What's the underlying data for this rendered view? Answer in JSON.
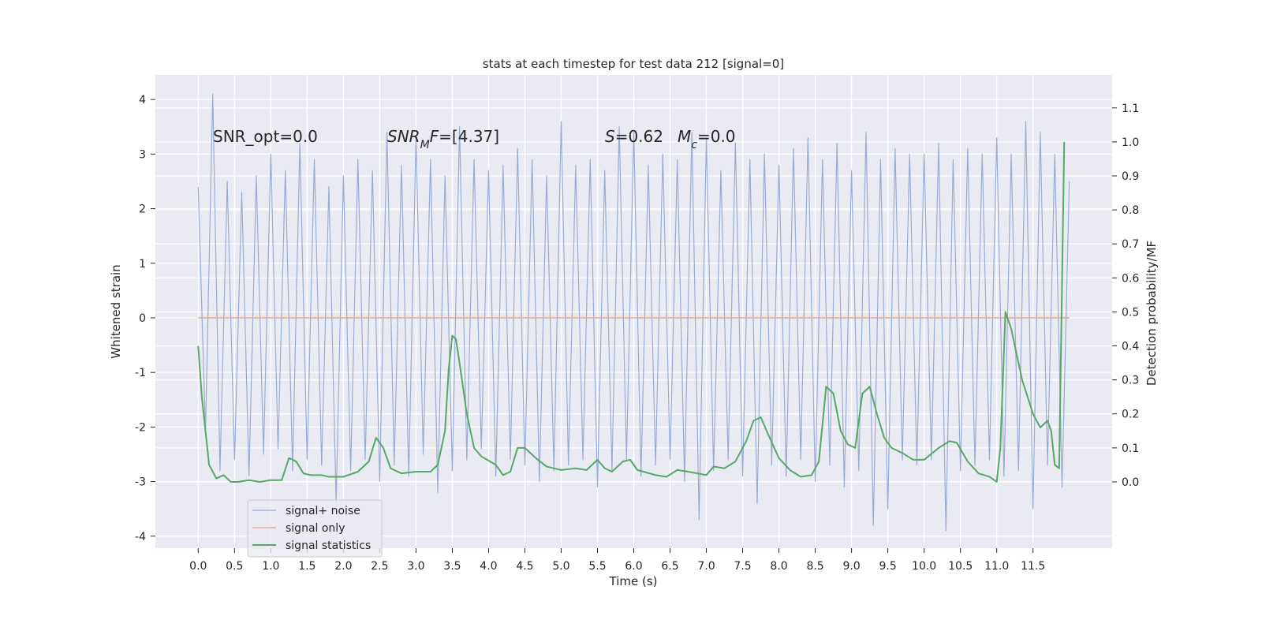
{
  "chart_data": {
    "type": "line",
    "title": "stats at each timestep for test data 212 [signal=0]",
    "xlabel": "Time (s)",
    "ylabel": "Whitened strain",
    "y2label": "Detection probability/MF",
    "xlim": [
      -0.59,
      12.59
    ],
    "ylim": [
      -4.22,
      4.45
    ],
    "y2lim": [
      -0.195,
      1.197
    ],
    "xticks": [
      {
        "value": 0,
        "label": "0.0"
      },
      0.5,
      {
        "value": 1,
        "label": "1.0"
      },
      1.5,
      {
        "value": 2,
        "label": "2.0"
      },
      2.5,
      {
        "value": 3,
        "label": "3.0"
      },
      3.5,
      {
        "value": 4,
        "label": "4.0"
      },
      4.5,
      {
        "value": 5,
        "label": "5.0"
      },
      5.5,
      {
        "value": 6,
        "label": "6.0"
      },
      6.5,
      {
        "value": 7,
        "label": "7.0"
      },
      7.5,
      {
        "value": 8,
        "label": "8.0"
      },
      8.5,
      {
        "value": 9,
        "label": "9.0"
      },
      9.5,
      {
        "value": 10,
        "label": "10.0"
      },
      10.5,
      {
        "value": 11,
        "label": "11.0"
      },
      11.5
    ],
    "yticks": [
      -4,
      -3,
      -2,
      -1,
      0,
      1,
      2,
      3,
      4
    ],
    "y2ticks": [
      {
        "value": 0,
        "label": "0.0"
      },
      0.1,
      0.2,
      0.3,
      0.4,
      0.5,
      0.6,
      0.7,
      0.8,
      0.9,
      {
        "value": 1,
        "label": "1.0"
      },
      1.1
    ],
    "grid": true,
    "legend": "lower left",
    "annotations": [
      [
        {
          "text": "SNR_opt=0.0"
        }
      ],
      [
        {
          "text": "SNR",
          "italic": true
        },
        {
          "text": "M",
          "italic": true,
          "sub": true
        },
        {
          "text": "F",
          "italic": true
        },
        {
          "text": "=[4.37]"
        }
      ],
      [
        {
          "text": "S",
          "italic": true
        },
        {
          "text": "=0.62"
        }
      ],
      [
        {
          "text": "M",
          "italic": true
        },
        {
          "text": "c",
          "italic": true,
          "sub": true
        },
        {
          "text": "=0.0"
        }
      ]
    ],
    "series": [
      {
        "name": "signal+ noise",
        "color": "#9aabd0",
        "width": 1.2,
        "x": [
          0,
          0.1,
          0.2,
          0.3,
          0.4,
          0.5,
          0.6,
          0.7,
          0.8,
          0.9,
          1,
          1.1,
          1.2,
          1.3,
          1.4,
          1.5,
          1.6,
          1.7,
          1.8,
          1.9,
          2,
          2.1,
          2.2,
          2.3,
          2.4,
          2.5,
          2.6,
          2.7,
          2.8,
          2.9,
          3,
          3.1,
          3.2,
          3.3,
          3.4,
          3.5,
          3.6,
          3.7,
          3.8,
          3.9,
          4,
          4.1,
          4.2,
          4.3,
          4.4,
          4.5,
          4.6,
          4.7,
          4.8,
          4.9,
          5,
          5.1,
          5.2,
          5.3,
          5.4,
          5.5,
          5.6,
          5.7,
          5.8,
          5.9,
          6,
          6.1,
          6.2,
          6.3,
          6.4,
          6.5,
          6.6,
          6.7,
          6.8,
          6.9,
          7,
          7.1,
          7.2,
          7.3,
          7.4,
          7.5,
          7.6,
          7.7,
          7.8,
          7.9,
          8,
          8.1,
          8.2,
          8.3,
          8.4,
          8.5,
          8.6,
          8.7,
          8.8,
          8.9,
          9,
          9.1,
          9.2,
          9.3,
          9.4,
          9.5,
          9.6,
          9.7,
          9.8,
          9.9,
          10,
          10.1,
          10.2,
          10.3,
          10.4,
          10.5,
          10.6,
          10.7,
          10.8,
          10.9,
          11,
          11.1,
          11.2,
          11.3,
          11.4,
          11.5,
          11.6,
          11.7,
          11.8,
          11.9,
          12
        ],
        "values": [
          2.4,
          -2.1,
          4.1,
          -2.8,
          2.5,
          -2.6,
          2.3,
          -2.9,
          2.6,
          -2.5,
          3.0,
          -2.4,
          2.7,
          -2.8,
          3.2,
          -2.6,
          2.9,
          -2.7,
          2.4,
          -3.4,
          2.6,
          -2.8,
          2.9,
          -2.6,
          2.7,
          -3.0,
          3.4,
          -2.7,
          2.8,
          -2.9,
          3.3,
          -2.5,
          2.9,
          -3.2,
          2.6,
          -2.8,
          3.5,
          -2.6,
          2.9,
          -2.4,
          2.7,
          -2.9,
          2.8,
          -2.6,
          3.1,
          -2.7,
          2.9,
          -3.0,
          2.6,
          -2.8,
          3.6,
          -2.7,
          2.8,
          -2.6,
          2.9,
          -3.1,
          2.7,
          -2.8,
          3.5,
          -2.6,
          3.4,
          -2.9,
          2.8,
          -2.7,
          3.0,
          -2.6,
          2.9,
          -3.0,
          3.4,
          -3.7,
          3.3,
          -2.8,
          2.7,
          -2.6,
          3.2,
          -2.9,
          2.9,
          -3.4,
          3.0,
          -2.7,
          2.8,
          -2.9,
          3.1,
          -2.6,
          3.3,
          -3.0,
          2.9,
          -2.7,
          3.2,
          -3.1,
          2.7,
          -2.8,
          3.4,
          -3.8,
          2.9,
          -3.5,
          3.1,
          -2.6,
          3.0,
          -2.7,
          3.0,
          -2.6,
          3.2,
          -3.9,
          2.9,
          -2.8,
          3.1,
          -2.7,
          3.0,
          -2.6,
          3.3,
          -2.9,
          3.0,
          -2.8,
          3.6,
          -3.5,
          3.4,
          -2.7,
          3.0,
          -3.1,
          2.5
        ]
      },
      {
        "name": "signal only",
        "color": "#e6a98c",
        "width": 1.5,
        "x": [
          0,
          12
        ],
        "values": [
          0,
          0
        ]
      },
      {
        "name": "signal statistics",
        "color": "#55a868",
        "width": 2,
        "axis": "y2",
        "x": [
          0,
          0.05,
          0.1,
          0.15,
          0.25,
          0.35,
          0.45,
          0.55,
          0.7,
          0.85,
          1.0,
          1.15,
          1.25,
          1.35,
          1.45,
          1.55,
          1.7,
          1.8,
          2.0,
          2.2,
          2.35,
          2.45,
          2.55,
          2.65,
          2.8,
          3.0,
          3.2,
          3.3,
          3.4,
          3.45,
          3.5,
          3.55,
          3.6,
          3.7,
          3.8,
          3.9,
          4.1,
          4.2,
          4.3,
          4.4,
          4.5,
          4.65,
          4.8,
          5.0,
          5.2,
          5.35,
          5.5,
          5.6,
          5.7,
          5.85,
          5.95,
          6.05,
          6.3,
          6.45,
          6.6,
          6.75,
          7.0,
          7.1,
          7.25,
          7.4,
          7.55,
          7.65,
          7.75,
          7.85,
          8.0,
          8.15,
          8.3,
          8.45,
          8.55,
          8.65,
          8.75,
          8.85,
          8.95,
          9.05,
          9.15,
          9.25,
          9.35,
          9.45,
          9.55,
          9.7,
          9.85,
          10.0,
          10.2,
          10.35,
          10.45,
          10.6,
          10.75,
          10.9,
          11.0,
          11.05,
          11.12,
          11.2,
          11.35,
          11.5,
          11.6,
          11.7,
          11.75,
          11.8,
          11.86,
          11.93
        ],
        "values": [
          0.4,
          0.25,
          0.15,
          0.05,
          0.01,
          0.02,
          0.0,
          0.0,
          0.005,
          0.0,
          0.005,
          0.005,
          0.07,
          0.06,
          0.025,
          0.02,
          0.02,
          0.015,
          0.015,
          0.03,
          0.06,
          0.13,
          0.1,
          0.04,
          0.025,
          0.03,
          0.03,
          0.05,
          0.15,
          0.33,
          0.43,
          0.42,
          0.35,
          0.2,
          0.1,
          0.075,
          0.05,
          0.02,
          0.03,
          0.1,
          0.1,
          0.07,
          0.045,
          0.035,
          0.04,
          0.035,
          0.065,
          0.04,
          0.03,
          0.06,
          0.065,
          0.035,
          0.02,
          0.015,
          0.035,
          0.03,
          0.02,
          0.045,
          0.04,
          0.06,
          0.12,
          0.18,
          0.19,
          0.14,
          0.07,
          0.035,
          0.015,
          0.02,
          0.06,
          0.28,
          0.26,
          0.15,
          0.11,
          0.1,
          0.26,
          0.28,
          0.2,
          0.13,
          0.1,
          0.085,
          0.065,
          0.065,
          0.1,
          0.12,
          0.115,
          0.06,
          0.025,
          0.015,
          0.0,
          0.1,
          0.5,
          0.45,
          0.3,
          0.2,
          0.16,
          0.18,
          0.15,
          0.05,
          0.04,
          1.0
        ]
      }
    ]
  }
}
